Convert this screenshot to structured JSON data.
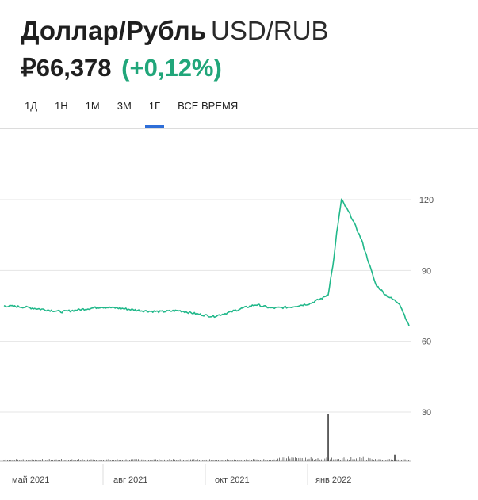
{
  "header": {
    "title": "Доллар/Рубль",
    "ticker": "USD/RUB",
    "price": "₽66,378",
    "change": "(+0,12%)",
    "change_color": "#21a67a"
  },
  "tabs": [
    {
      "label": "1Д",
      "active": false
    },
    {
      "label": "1Н",
      "active": false
    },
    {
      "label": "1М",
      "active": false
    },
    {
      "label": "3М",
      "active": false
    },
    {
      "label": "1Г",
      "active": true
    },
    {
      "label": "ВСЕ ВРЕМЯ",
      "active": false
    }
  ],
  "accent_color": "#2e6ed8",
  "chart_data": {
    "type": "line",
    "series": [
      {
        "color": "#21b88a"
      }
    ],
    "x": [
      "2021-03-25",
      "2021-04-15",
      "2021-05-05",
      "2021-05-25",
      "2021-06-15",
      "2021-07-05",
      "2021-07-25",
      "2021-08-15",
      "2021-09-05",
      "2021-09-25",
      "2021-10-15",
      "2021-10-31",
      "2021-11-15",
      "2021-12-01",
      "2021-12-15",
      "2022-01-01",
      "2022-01-20",
      "2022-02-10",
      "2022-02-24",
      "2022-03-01",
      "2022-03-07",
      "2022-03-10",
      "2022-03-15",
      "2022-03-25",
      "2022-04-05",
      "2022-04-20",
      "2022-05-01",
      "2022-05-15",
      "2022-05-25"
    ],
    "y": [
      75,
      74.5,
      73.5,
      72.5,
      73.5,
      74.5,
      74,
      73,
      72.5,
      73,
      71.5,
      70.5,
      72,
      74,
      75.5,
      74,
      74.5,
      76,
      78.5,
      80,
      95,
      106,
      120,
      113,
      103,
      84,
      79.5,
      76,
      66.5
    ],
    "y_ticks": [
      120,
      90,
      60,
      30
    ],
    "ylim": [
      20,
      135
    ],
    "x_tick_labels": [
      "май 2021",
      "авг 2021",
      "окт 2021",
      "янв 2022"
    ],
    "volume": {
      "spikes": [
        {
          "date": "2022-03-01",
          "value": 29
        },
        {
          "date": "2022-05-10",
          "value": 4
        }
      ]
    }
  }
}
